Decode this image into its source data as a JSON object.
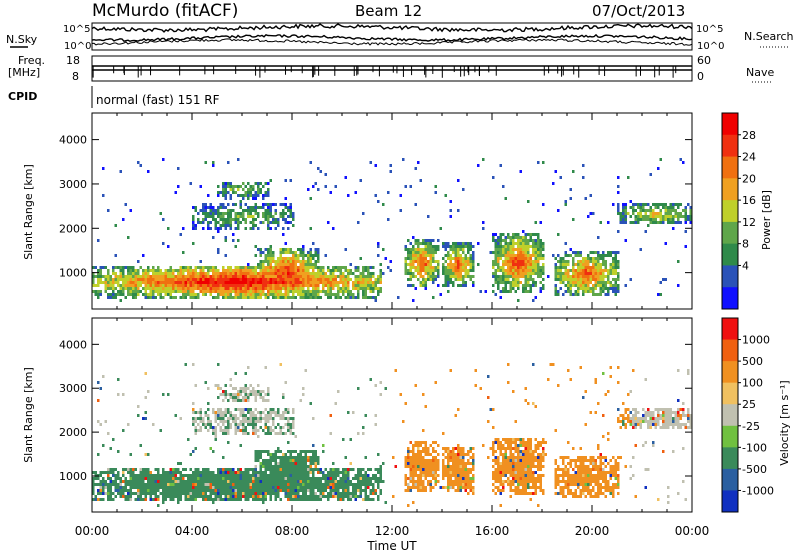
{
  "header": {
    "title": "McMurdo (fitACF)",
    "beam": "Beam 12",
    "date": "07/Oct/2013"
  },
  "top_panels": {
    "nsky_label": "N.Sky",
    "nsearch_label": "N.Search",
    "noise_ticks": [
      "10^5",
      "10^0"
    ],
    "freq_label_1": "Freq.",
    "freq_label_2": "[MHz]",
    "freq_ticks": [
      "18",
      "8"
    ],
    "nave_label": "Nave",
    "nave_ticks": [
      "60",
      "0"
    ],
    "cpid_label": "CPID",
    "cpid_text": "normal (fast) 151 RF"
  },
  "chart_data": [
    {
      "type": "heatmap",
      "title": "Power",
      "xlabel": "Time UT",
      "ylabel": "Slant Range [km]",
      "x_ticks": [
        "00:00",
        "04:00",
        "08:00",
        "12:00",
        "16:00",
        "20:00",
        "00:00"
      ],
      "xlim_hours": [
        0,
        24
      ],
      "ylim": [
        180,
        4600
      ],
      "y_ticks": [
        1000,
        2000,
        3000,
        4000
      ],
      "colorbar_label": "Power [dB]",
      "colorbar_ticks": [
        "28",
        "24",
        "20",
        "16",
        "12",
        "8",
        "4"
      ],
      "colors": [
        "#1010ff",
        "#2a52b8",
        "#2f8a4a",
        "#5fa64a",
        "#bfd02a",
        "#f0a020",
        "#f07010",
        "#f03010",
        "#f00000"
      ]
    },
    {
      "type": "heatmap",
      "title": "Velocity",
      "xlabel": "Time UT",
      "ylabel": "Slant Range [km]",
      "x_ticks": [
        "00:00",
        "04:00",
        "08:00",
        "12:00",
        "16:00",
        "20:00",
        "00:00"
      ],
      "xlim_hours": [
        0,
        24
      ],
      "ylim": [
        180,
        4600
      ],
      "y_ticks": [
        1000,
        2000,
        3000,
        4000
      ],
      "colorbar_label": "Velocity [m s⁻¹]",
      "colorbar_ticks": [
        "1000",
        "500",
        "100",
        "25",
        "-25",
        "-100",
        "-500",
        "-1000"
      ],
      "colors": [
        "#1030c0",
        "#2a5fa0",
        "#3a8a5a",
        "#70c040",
        "#c0c0b0",
        "#f0c060",
        "#f09020",
        "#f06010",
        "#f01010"
      ]
    }
  ],
  "x_axis_title": "Time UT"
}
